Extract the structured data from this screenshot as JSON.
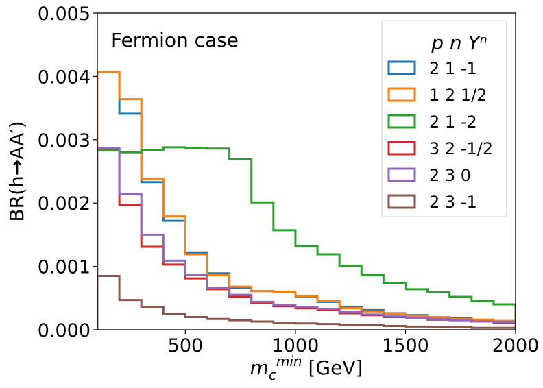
{
  "chart_data": {
    "type": "line",
    "style": "step-histogram",
    "annotation": "Fermion case",
    "xlabel": {
      "main": "m",
      "sub": "c",
      "sup": "min",
      "unit": " [GeV]"
    },
    "ylabel": "BR(h→AA′)",
    "xlim": [
      100,
      2000
    ],
    "ylim": [
      0,
      0.005
    ],
    "xticks": [
      500,
      1000,
      1500,
      2000
    ],
    "xtick_labels": [
      "500",
      "1000",
      "1500",
      "2000"
    ],
    "yticks": [
      0,
      0.001,
      0.002,
      0.003,
      0.004,
      0.005
    ],
    "ytick_labels": [
      "0.000",
      "0.001",
      "0.002",
      "0.003",
      "0.004",
      "0.005"
    ],
    "bin_edges": [
      100,
      200,
      300,
      400,
      500,
      600,
      700,
      800,
      900,
      1000,
      1100,
      1200,
      1300,
      1400,
      1500,
      1600,
      1700,
      1800,
      1900,
      2000
    ],
    "legend_title": "p n Yⁿ",
    "legend_position": "upper right",
    "grid": false,
    "series": [
      {
        "name": "2 1 -1",
        "color": "#1f77b4",
        "values": [
          0.00407,
          0.00341,
          0.00233,
          0.00172,
          0.00122,
          0.00089,
          0.00066,
          0.00061,
          0.00059,
          0.00052,
          0.00044,
          0.00036,
          0.00031,
          0.00026,
          0.00023,
          0.0002,
          0.00018,
          0.00016,
          0.00013
        ]
      },
      {
        "name": "1 2  1/2",
        "color": "#ff7f0e",
        "values": [
          0.00407,
          0.00364,
          0.00238,
          0.00179,
          0.00119,
          0.00086,
          0.00068,
          0.00061,
          0.0006,
          0.00053,
          0.00046,
          0.00034,
          0.00029,
          0.00025,
          0.00022,
          0.0002,
          0.00017,
          0.00016,
          0.00014
        ]
      },
      {
        "name": "2 1 -2",
        "color": "#2ca02c",
        "values": [
          0.00283,
          0.0028,
          0.00284,
          0.00288,
          0.00287,
          0.00286,
          0.00269,
          0.00201,
          0.00157,
          0.00132,
          0.00119,
          0.00101,
          0.00086,
          0.00074,
          0.00064,
          0.00059,
          0.00052,
          0.00045,
          0.0004
        ]
      },
      {
        "name": "3 2 -1/2",
        "color": "#d62728",
        "values": [
          0.00286,
          0.00197,
          0.00131,
          0.00103,
          0.00081,
          0.00064,
          0.00052,
          0.00042,
          0.00037,
          0.00034,
          0.00031,
          0.00026,
          0.00023,
          0.0002,
          0.00018,
          0.00016,
          0.00015,
          0.00013,
          0.00011
        ]
      },
      {
        "name": "2 3 0",
        "color": "#9467bd",
        "values": [
          0.00287,
          0.00214,
          0.0015,
          0.00109,
          0.00087,
          0.00066,
          0.00055,
          0.00044,
          0.00039,
          0.00036,
          0.00033,
          0.00028,
          0.00024,
          0.00021,
          0.00019,
          0.00017,
          0.00015,
          0.00013,
          0.00012
        ]
      },
      {
        "name": "2 3 -1",
        "color": "#8c564b",
        "values": [
          0.00085,
          0.00047,
          0.00036,
          0.00025,
          0.0002,
          0.00017,
          0.00015,
          0.00013,
          0.00011,
          0.0001,
          9e-05,
          8e-05,
          7e-05,
          6e-05,
          5e-05,
          4e-05,
          4e-05,
          3e-05,
          3e-05
        ]
      }
    ]
  }
}
